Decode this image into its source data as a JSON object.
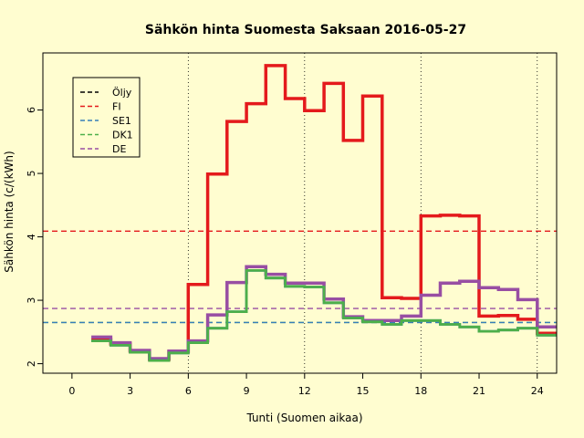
{
  "chart_data": {
    "type": "line",
    "title": "Sähkön hinta Suomesta Saksaan 2016-05-27",
    "xlabel": "Tunti (Suomen aikaa)",
    "ylabel": "Sähkön hinta (c/(kWh)",
    "xlim": [
      -1.5,
      25
    ],
    "ylim": [
      1.85,
      6.9
    ],
    "x_ticks": [
      0,
      3,
      6,
      9,
      12,
      15,
      18,
      21,
      24
    ],
    "y_ticks": [
      2,
      3,
      4,
      5,
      6
    ],
    "vertical_gridlines_at": [
      6,
      12,
      18,
      24
    ],
    "legend_position": "top-left",
    "legend": [
      "Öljy",
      "FI",
      "SE1",
      "DK1",
      "DE"
    ],
    "series": [
      {
        "name": "FI",
        "color": "#e41a1c",
        "step_hours": [
          1,
          2,
          3,
          4,
          5,
          6,
          7,
          8,
          9,
          10,
          11,
          12,
          13,
          14,
          15,
          16,
          17,
          18,
          19,
          20,
          21,
          22,
          23,
          24
        ],
        "values": [
          2.38,
          2.31,
          2.2,
          2.07,
          2.19,
          3.25,
          4.99,
          5.82,
          6.1,
          6.7,
          6.18,
          5.99,
          6.42,
          5.52,
          6.22,
          3.04,
          3.03,
          4.33,
          4.34,
          4.33,
          2.75,
          2.76,
          2.7,
          2.48
        ],
        "mean": 4.09
      },
      {
        "name": "DE",
        "color": "#984ea3",
        "step_hours": [
          1,
          2,
          3,
          4,
          5,
          6,
          7,
          8,
          9,
          10,
          11,
          12,
          13,
          14,
          15,
          16,
          17,
          18,
          19,
          20,
          21,
          22,
          23,
          24
        ],
        "values": [
          2.42,
          2.33,
          2.21,
          2.08,
          2.2,
          2.36,
          2.77,
          3.28,
          3.53,
          3.41,
          3.27,
          3.27,
          3.02,
          2.74,
          2.68,
          2.68,
          2.75,
          3.08,
          3.27,
          3.3,
          3.2,
          3.17,
          3.01,
          2.58
        ],
        "mean": 2.87
      },
      {
        "name": "SE1",
        "color": "#377eb8",
        "step_hours": [
          1,
          2,
          3,
          4,
          5,
          6,
          7,
          8,
          9,
          10,
          11,
          12,
          13,
          14,
          15,
          16,
          17,
          18,
          19,
          20,
          21,
          22,
          23,
          24
        ],
        "values": [
          2.36,
          2.29,
          2.18,
          2.05,
          2.17,
          2.33,
          2.56,
          2.82,
          3.47,
          3.35,
          3.22,
          3.21,
          2.96,
          2.72,
          2.66,
          2.62,
          2.68,
          2.68,
          2.62,
          2.58,
          2.51,
          2.53,
          2.56,
          2.45
        ],
        "mean": 2.65
      },
      {
        "name": "DK1",
        "color": "#4daf4a",
        "step_hours": [
          1,
          2,
          3,
          4,
          5,
          6,
          7,
          8,
          9,
          10,
          11,
          12,
          13,
          14,
          15,
          16,
          17,
          18,
          19,
          20,
          21,
          22,
          23,
          24
        ],
        "values": [
          2.36,
          2.29,
          2.18,
          2.05,
          2.17,
          2.33,
          2.56,
          2.82,
          3.47,
          3.35,
          3.22,
          3.21,
          2.96,
          2.72,
          2.66,
          2.62,
          2.68,
          2.68,
          2.62,
          2.58,
          2.51,
          2.53,
          2.56,
          2.45
        ],
        "mean": 2.65
      }
    ],
    "legend_colors": {
      "Öljy": "#000000",
      "FI": "#e41a1c",
      "SE1": "#377eb8",
      "DK1": "#4daf4a",
      "DE": "#984ea3"
    }
  }
}
